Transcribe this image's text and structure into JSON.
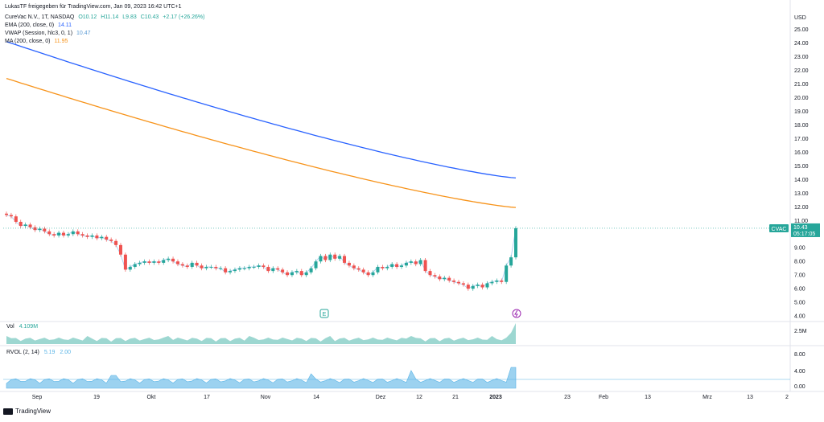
{
  "header": {
    "published": "LukasTF freigegeben für TradingView.com, Jan 09, 2023 16:42 UTC+1",
    "symbol_line": "CureVac N.V., 1T, NASDAQ",
    "ohlc": {
      "O": "O10.12",
      "H": "H11.14",
      "L": "L9.83",
      "C": "C10.43",
      "change": "+2.17 (+26.26%)"
    },
    "ema": {
      "label": "EMA (200, close, 0)",
      "value": "14.11"
    },
    "vwap": {
      "label": "VWAP (Session, hlc3, 0, 1)",
      "value": "10.47"
    },
    "ma": {
      "label": "MA (200, close, 0)",
      "value": "11.95"
    }
  },
  "volume_pane": {
    "label": "Vol",
    "value": "4.109M",
    "axis": [
      "2.5M"
    ]
  },
  "rvol_pane": {
    "label": "RVOL (2, 14)",
    "value1": "5.19",
    "value2": "2.00",
    "axis": [
      "8.00",
      "4.00",
      "0.00"
    ]
  },
  "price_tag": {
    "symbol": "CVAC",
    "price": "10.43",
    "countdown": "05:17:05"
  },
  "markers": {
    "earnings": "E"
  },
  "footer": {
    "brand": "TradingView"
  },
  "colors": {
    "up": "#26a69a",
    "down": "#ef5350",
    "ema": "#2962ff",
    "ma": "#f7931a",
    "vwap": "#7cb5ec",
    "rvol": "#5ab4e6"
  },
  "chart_data": {
    "type": "candlestick",
    "currency": "USD",
    "y_ticks": [
      "25.00",
      "24.00",
      "23.00",
      "22.00",
      "21.00",
      "20.00",
      "19.00",
      "18.00",
      "17.00",
      "16.00",
      "15.00",
      "14.00",
      "13.00",
      "12.00",
      "11.00",
      "10.00",
      "9.00",
      "8.00",
      "7.00",
      "6.00",
      "5.00",
      "4.00"
    ],
    "x_ticks": [
      "Sep",
      "19",
      "Okt",
      "17",
      "Nov",
      "14",
      "Dez",
      "12",
      "21",
      "2023",
      "23",
      "Feb",
      "13",
      "Mrz",
      "13",
      "2"
    ],
    "ylim": [
      3.6,
      26.2
    ],
    "candles_close": [
      11.4,
      11.3,
      10.9,
      10.6,
      10.7,
      10.5,
      10.3,
      10.4,
      10.2,
      10.0,
      9.9,
      10.1,
      9.9,
      10.0,
      10.2,
      10.0,
      9.9,
      9.8,
      9.9,
      9.7,
      9.8,
      9.6,
      9.5,
      9.2,
      8.5,
      7.4,
      7.6,
      7.8,
      7.9,
      8.0,
      7.9,
      8.0,
      7.9,
      8.1,
      8.2,
      8.0,
      7.8,
      7.7,
      7.6,
      7.9,
      7.7,
      7.5,
      7.6,
      7.6,
      7.5,
      7.5,
      7.2,
      7.3,
      7.4,
      7.5,
      7.5,
      7.6,
      7.6,
      7.7,
      7.6,
      7.3,
      7.5,
      7.4,
      7.2,
      7.0,
      7.2,
      7.3,
      7.0,
      7.2,
      7.5,
      8.0,
      8.4,
      8.1,
      8.5,
      8.2,
      8.4,
      7.9,
      7.7,
      7.5,
      7.4,
      7.2,
      7.0,
      7.2,
      7.6,
      7.5,
      7.6,
      7.8,
      7.6,
      7.7,
      7.9,
      8.0,
      7.8,
      8.1,
      7.3,
      7.0,
      6.9,
      6.7,
      6.8,
      6.6,
      6.5,
      6.4,
      6.3,
      6.0,
      6.2,
      6.3,
      6.1,
      6.4,
      6.5,
      6.6,
      6.5,
      7.7,
      8.3,
      10.43
    ],
    "ema": {
      "name": "EMA (200, close, 0)",
      "start": 24.1,
      "end": 14.11
    },
    "ma": {
      "name": "MA (200, close, 0)",
      "start": 21.4,
      "end": 11.95
    },
    "last_price": 10.43,
    "volume_max_label": "2.5M",
    "rvol_ticks": [
      8,
      4,
      0
    ]
  }
}
